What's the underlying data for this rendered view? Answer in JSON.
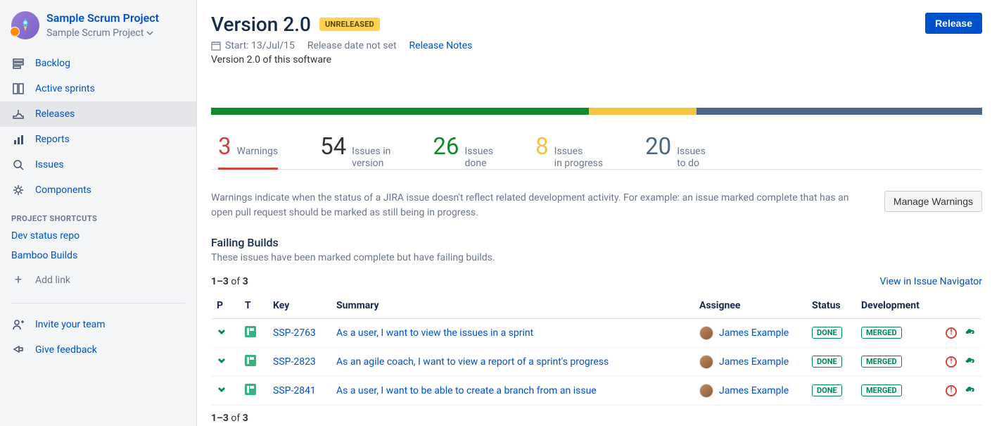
{
  "sidebar": {
    "project_title": "Sample Scrum Project",
    "project_subtitle": "Sample Scrum Project",
    "nav": [
      {
        "label": "Backlog",
        "icon": "backlog"
      },
      {
        "label": "Active sprints",
        "icon": "sprints"
      },
      {
        "label": "Releases",
        "icon": "releases",
        "active": true
      },
      {
        "label": "Reports",
        "icon": "reports"
      },
      {
        "label": "Issues",
        "icon": "issues"
      },
      {
        "label": "Components",
        "icon": "components"
      }
    ],
    "shortcuts_header": "PROJECT SHORTCUTS",
    "shortcuts": [
      {
        "label": "Dev status repo"
      },
      {
        "label": "Bamboo Builds"
      }
    ],
    "add_link": "Add link",
    "footer": [
      {
        "label": "Invite your team",
        "icon": "invite"
      },
      {
        "label": "Give feedback",
        "icon": "feedback"
      }
    ]
  },
  "header": {
    "title": "Version 2.0",
    "badge": "UNRELEASED",
    "badge_bg": "#ffd351",
    "release_button": "Release",
    "start_label": "Start: 13/Jul/15",
    "release_date": "Release date not set",
    "release_notes": "Release Notes",
    "description": "Version 2.0 of this software"
  },
  "progress": {
    "segments": [
      {
        "color": "#14892c",
        "width": 49
      },
      {
        "color": "#f6c342",
        "width": 14
      },
      {
        "color": "#4a6785",
        "width": 37
      }
    ]
  },
  "stats": [
    {
      "value": "3",
      "label_line1": "Warnings",
      "label_line2": "",
      "color": "#d04437",
      "active": true
    },
    {
      "value": "54",
      "label_line1": "Issues in",
      "label_line2": "version",
      "color": "#333333"
    },
    {
      "value": "26",
      "label_line1": "Issues",
      "label_line2": "done",
      "color": "#14892c"
    },
    {
      "value": "8",
      "label_line1": "Issues",
      "label_line2": "in progress",
      "color": "#f6c342"
    },
    {
      "value": "20",
      "label_line1": "Issues",
      "label_line2": "to do",
      "color": "#4a6785"
    }
  ],
  "warnings": {
    "text": "Warnings indicate when the status of a JIRA issue doesn't reflect related development activity. For example: an issue marked complete that has an open pull request should be marked as still being in progress.",
    "manage_button": "Manage Warnings"
  },
  "failing": {
    "title": "Failing Builds",
    "subtitle": "These issues have been marked complete but have failing builds."
  },
  "paging": {
    "range": "1–3",
    "of": "of",
    "total": "3",
    "view_link": "View in Issue Navigator"
  },
  "table": {
    "columns": [
      "P",
      "T",
      "Key",
      "Summary",
      "Assignee",
      "Status",
      "Development",
      ""
    ],
    "rows": [
      {
        "key": "SSP-2763",
        "summary": "As a user, I want to view the issues in a sprint",
        "assignee": "James Example",
        "status": "DONE",
        "dev": "MERGED"
      },
      {
        "key": "SSP-2823",
        "summary": "As an agile coach, I want to view a report of a sprint's progress",
        "assignee": "James Example",
        "status": "DONE",
        "dev": "MERGED"
      },
      {
        "key": "SSP-2841",
        "summary": "As a user, I want to be able to create a branch from an issue",
        "assignee": "James Example",
        "status": "DONE",
        "dev": "MERGED"
      }
    ]
  },
  "colors": {
    "link": "#0052cc",
    "green": "#00875a",
    "status_border": "#00875a",
    "red": "#d04437"
  }
}
